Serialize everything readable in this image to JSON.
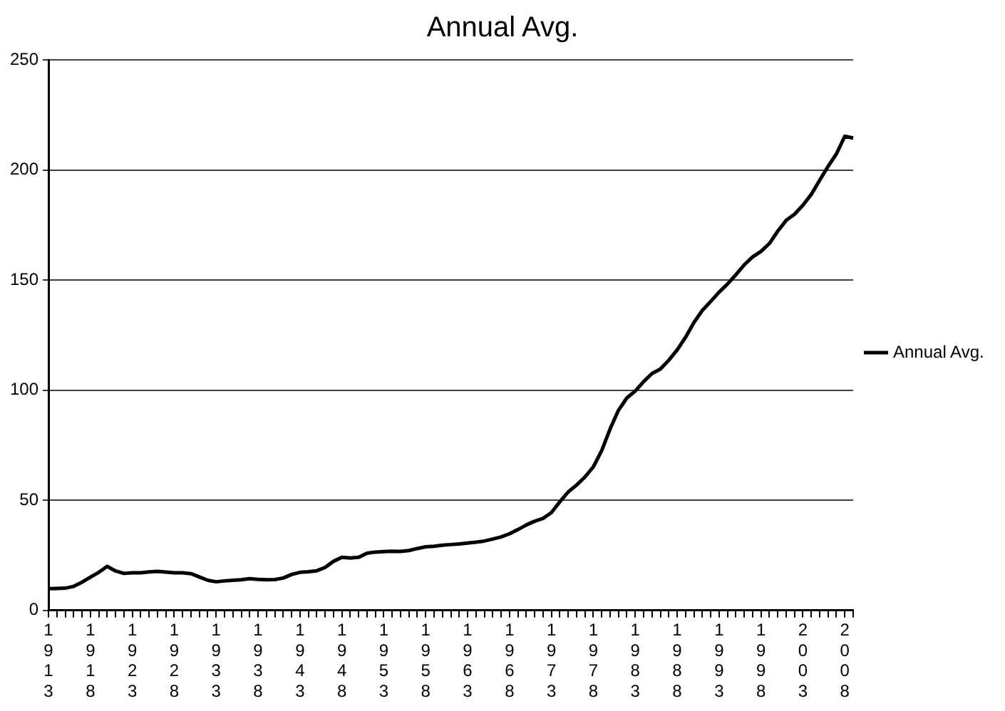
{
  "chart_data": {
    "type": "line",
    "title": "Annual Avg.",
    "categories": [
      "1913",
      null,
      null,
      null,
      null,
      "1918",
      null,
      null,
      null,
      null,
      "1923",
      null,
      null,
      null,
      null,
      "1928",
      null,
      null,
      null,
      null,
      "1933",
      null,
      null,
      null,
      null,
      "1938",
      null,
      null,
      null,
      null,
      "1943",
      null,
      null,
      null,
      null,
      "1948",
      null,
      null,
      null,
      null,
      "1953",
      null,
      null,
      null,
      null,
      "1958",
      null,
      null,
      null,
      null,
      "1963",
      null,
      null,
      null,
      null,
      "1968",
      null,
      null,
      null,
      null,
      "1973",
      null,
      null,
      null,
      null,
      "1978",
      null,
      null,
      null,
      null,
      "1983",
      null,
      null,
      null,
      null,
      "1988",
      null,
      null,
      null,
      null,
      "1993",
      null,
      null,
      null,
      null,
      "1998",
      null,
      null,
      null,
      null,
      "2003",
      null,
      null,
      null,
      null,
      "2008",
      null
    ],
    "series": [
      {
        "name": "Annual Avg.",
        "color": "#000000",
        "values": [
          9.9,
          10.0,
          10.1,
          10.9,
          12.8,
          15.1,
          17.3,
          20.0,
          17.9,
          16.8,
          17.1,
          17.1,
          17.5,
          17.7,
          17.4,
          17.1,
          17.1,
          16.7,
          15.2,
          13.7,
          13.0,
          13.4,
          13.7,
          13.9,
          14.4,
          14.1,
          13.9,
          14.0,
          14.7,
          16.3,
          17.3,
          17.6,
          18.0,
          19.5,
          22.3,
          24.1,
          23.8,
          24.1,
          26.0,
          26.5,
          26.7,
          26.9,
          26.8,
          27.2,
          28.1,
          28.9,
          29.1,
          29.6,
          29.9,
          30.2,
          30.6,
          31.0,
          31.5,
          32.4,
          33.4,
          34.8,
          36.7,
          38.8,
          40.5,
          41.8,
          44.4,
          49.3,
          53.8,
          56.9,
          60.6,
          65.2,
          72.6,
          82.4,
          90.9,
          96.5,
          99.6,
          103.9,
          107.6,
          109.6,
          113.6,
          118.3,
          124.0,
          130.7,
          136.2,
          140.3,
          144.5,
          148.2,
          152.4,
          156.9,
          160.5,
          163.0,
          166.6,
          172.2,
          177.1,
          179.9,
          184.0,
          188.9,
          195.3,
          201.6,
          207.3,
          215.3,
          214.5
        ]
      }
    ],
    "ylim": [
      0,
      250
    ],
    "yticks": [
      0,
      50,
      100,
      150,
      200,
      250
    ],
    "grid": "y",
    "legend": "right",
    "marker": "none",
    "line_style": "solid"
  }
}
